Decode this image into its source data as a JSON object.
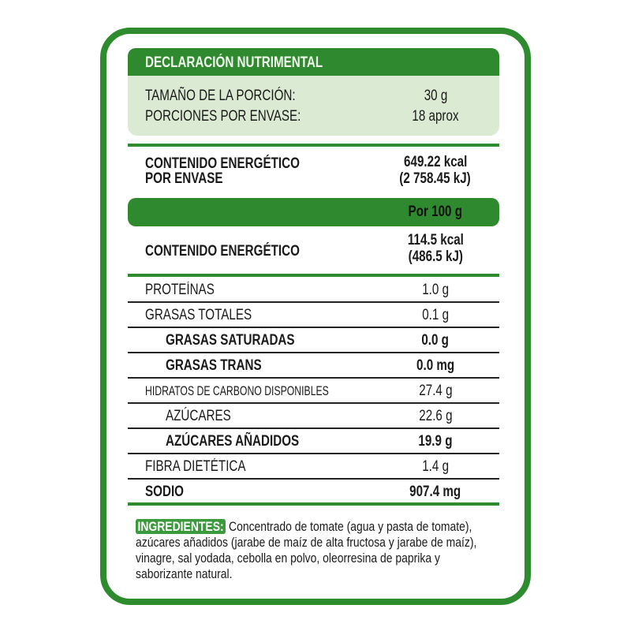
{
  "title": "DECLARACIÓN NUTRIMENTAL",
  "serving": [
    {
      "label": "TAMAÑO DE LA PORCIÓN:",
      "value": "30 g"
    },
    {
      "label": "PORCIONES POR ENVASE:",
      "value": "18 aprox"
    }
  ],
  "energy_package": {
    "label_1": "CONTENIDO ENERGÉTICO",
    "label_2": "POR ENVASE",
    "kcal": "649.22 kcal",
    "kj": "(2 758.45 kJ)"
  },
  "per_100_label": "Por 100 g",
  "energy_100": {
    "label": "CONTENIDO ENERGÉTICO",
    "kcal": "114.5 kcal",
    "kj": "(486.5 kJ)"
  },
  "nutrients": [
    {
      "label": "PROTEÍNAS",
      "value": "1.0 g"
    },
    {
      "label": "GRASAS TOTALES",
      "value": "0.1 g"
    },
    {
      "label": "GRASAS SATURADAS",
      "value": "0.0 g"
    },
    {
      "label": "GRASAS TRANS",
      "value": "0.0 mg"
    },
    {
      "label": "HIDRATOS DE CARBONO DISPONIBLES",
      "value": "27.4 g"
    },
    {
      "label": "AZÚCARES",
      "value": "22.6 g"
    },
    {
      "label": "AZÚCARES AÑADIDOS",
      "value": "19.9 g"
    },
    {
      "label": "FIBRA DIETÉTICA",
      "value": "1.4 g"
    },
    {
      "label": "SODIO",
      "value": "907.4 mg"
    }
  ],
  "ingredients": {
    "label": "INGREDIENTES:",
    "text": "Concentrado de tomate (agua y pasta de tomate), azúcares añadidos (jarabe de maíz de alta fructosa y jarabe de maíz), vinagre, sal yodada, cebolla en polvo, oleorresina de paprika y saborizante natural."
  },
  "colors": {
    "green": "#2e8b2e",
    "light_green": "#dbead2"
  }
}
